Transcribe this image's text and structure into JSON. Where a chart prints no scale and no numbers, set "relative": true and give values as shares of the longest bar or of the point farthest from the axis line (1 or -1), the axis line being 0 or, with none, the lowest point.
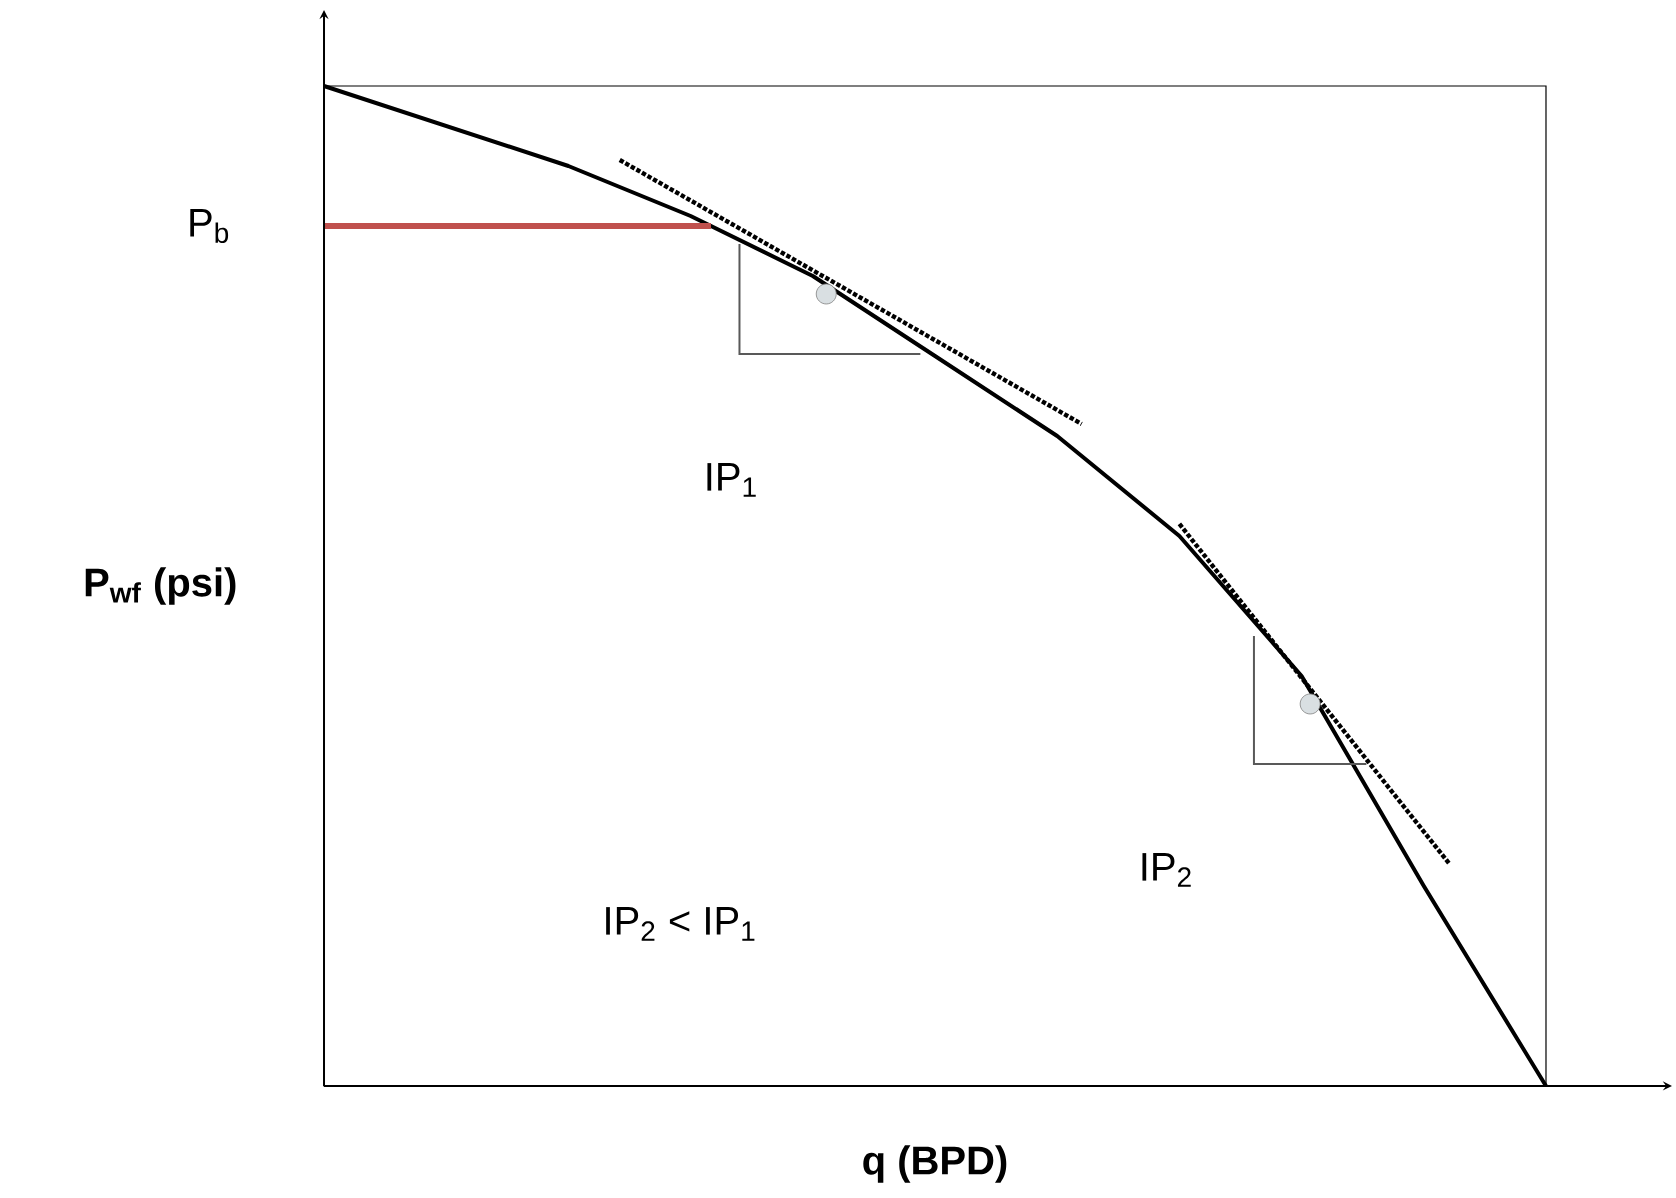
{
  "chart_data": {
    "type": "line",
    "relative": true,
    "tick_labels": false,
    "xlabel": "q (BPD)",
    "ylabel": "P$_{wf}$ (psi)",
    "categories": [
      null,
      null,
      null,
      null,
      null,
      null,
      null,
      null,
      null,
      null,
      null
    ],
    "series": [
      {
        "color": "#000000",
        "values": [
          1,
          0.96,
          0.92,
          0.87,
          0.81,
          0.73,
          0.65,
          0.55,
          0.41,
          0.2,
          0
        ]
      }
    ],
    "ref_lines": [
      {
        "axis": "y",
        "value": 0.86,
        "label": "P$_{b}$",
        "color": "#c0504d"
      }
    ],
    "annotations": [
      "IP$_{1}$",
      "IP$_{2}$",
      "IP$_{2}$ < IP$_{1}$"
    ]
  }
}
